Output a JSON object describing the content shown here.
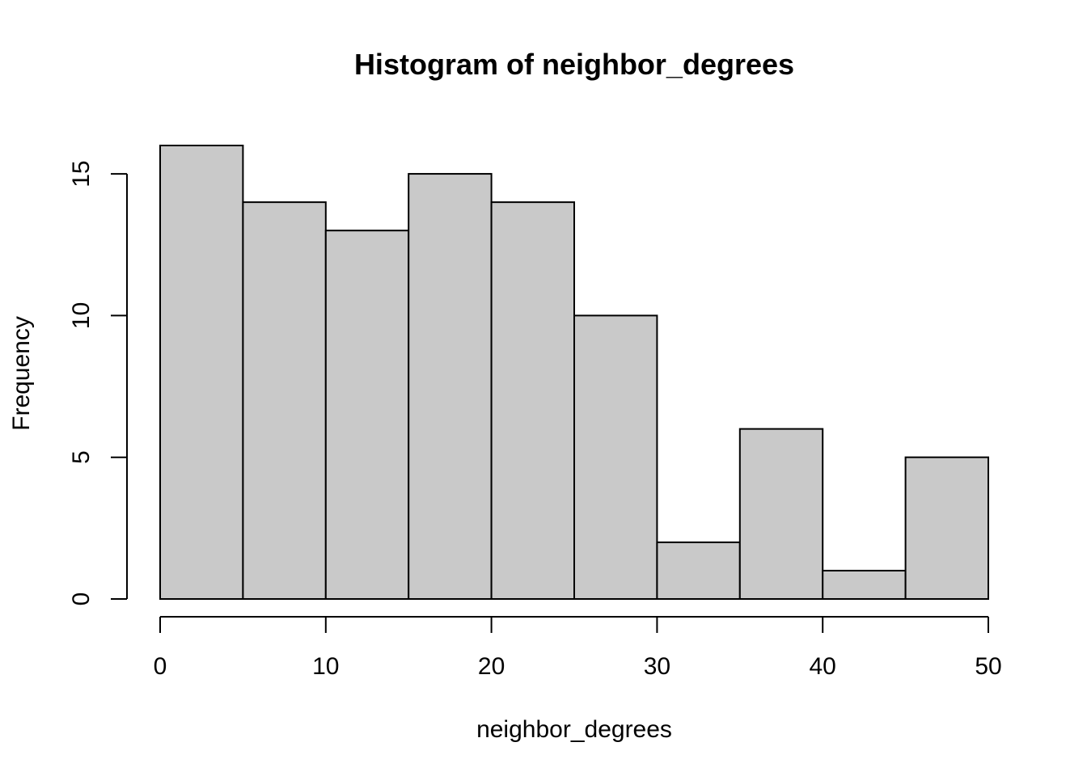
{
  "chart_data": {
    "type": "bar",
    "title": "Histogram of neighbor_degrees",
    "xlabel": "neighbor_degrees",
    "ylabel": "Frequency",
    "bin_edges": [
      0,
      5,
      10,
      15,
      20,
      25,
      30,
      35,
      40,
      45,
      50
    ],
    "values": [
      16,
      14,
      13,
      15,
      14,
      10,
      2,
      6,
      1,
      5
    ],
    "xlim": [
      0,
      50
    ],
    "ylim": [
      0,
      16
    ],
    "xticks": [
      0,
      10,
      20,
      30,
      40,
      50
    ],
    "yticks": [
      0,
      5,
      10,
      15
    ],
    "bar_color": "#c9c9c9",
    "edge_color": "#000000",
    "grid": false,
    "legend": "none"
  }
}
